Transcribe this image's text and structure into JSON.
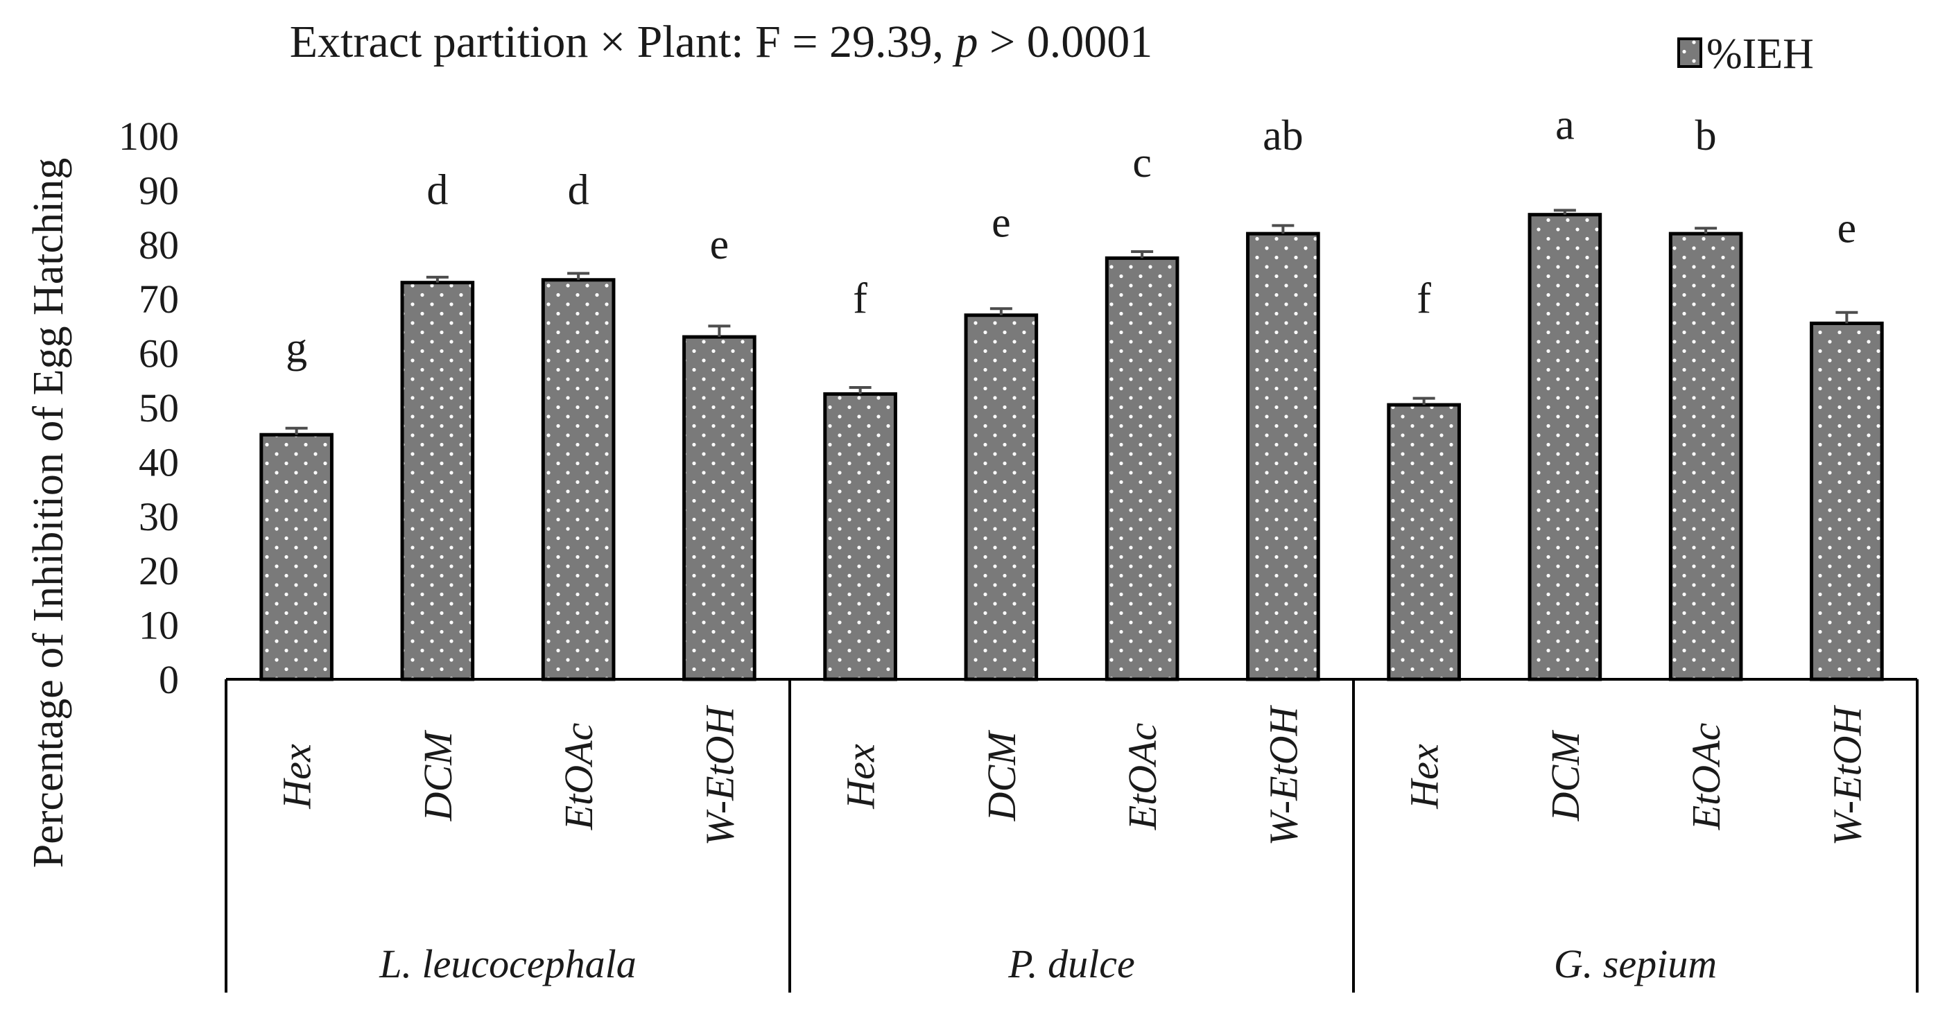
{
  "chart_data": {
    "type": "bar",
    "title_prefix": "Extract partition × Plant: F = 29.39, ",
    "title_italic": "p",
    "title_suffix": " > 0.0001",
    "ylabel": "Percentage of Inhibition of Egg Hatching",
    "ylim": [
      0,
      100
    ],
    "yticks": [
      0,
      10,
      20,
      30,
      40,
      50,
      60,
      70,
      80,
      90,
      100
    ],
    "grid": false,
    "legend": {
      "position": "top-right",
      "label": "%IEH"
    },
    "groups": [
      {
        "label": "L. leucocephala",
        "categories": [
          "Hex",
          "DCM",
          "EtOAc",
          "W-EtOH"
        ]
      },
      {
        "label": "P. dulce",
        "categories": [
          "Hex",
          "DCM",
          "EtOAc",
          "W-EtOH"
        ]
      },
      {
        "label": "G. sepium",
        "categories": [
          "Hex",
          "DCM",
          "EtOAc",
          "W-EtOH"
        ]
      }
    ],
    "series": [
      {
        "name": "%IEH",
        "values": [
          45,
          73,
          73.5,
          63,
          52.5,
          67,
          77.5,
          82,
          50.5,
          85.5,
          82,
          65.5
        ],
        "errors": [
          1.2,
          1.0,
          1.2,
          2.0,
          1.2,
          1.2,
          1.2,
          1.5,
          1.2,
          0.8,
          1.0,
          2.0
        ],
        "letters": [
          "g",
          "d",
          "d",
          "e",
          "f",
          "e",
          "c",
          "ab",
          "f",
          "a",
          "b",
          "e"
        ],
        "letter_y": [
          61,
          90,
          90,
          80,
          70,
          84,
          95,
          100,
          70,
          102,
          100,
          83
        ]
      }
    ],
    "colors": {
      "bar_fill": "#7a7a7a",
      "bar_stroke": "#000000",
      "dots": "#ffffff",
      "error_bar": "#4d4d4d",
      "axis": "#000000"
    }
  }
}
